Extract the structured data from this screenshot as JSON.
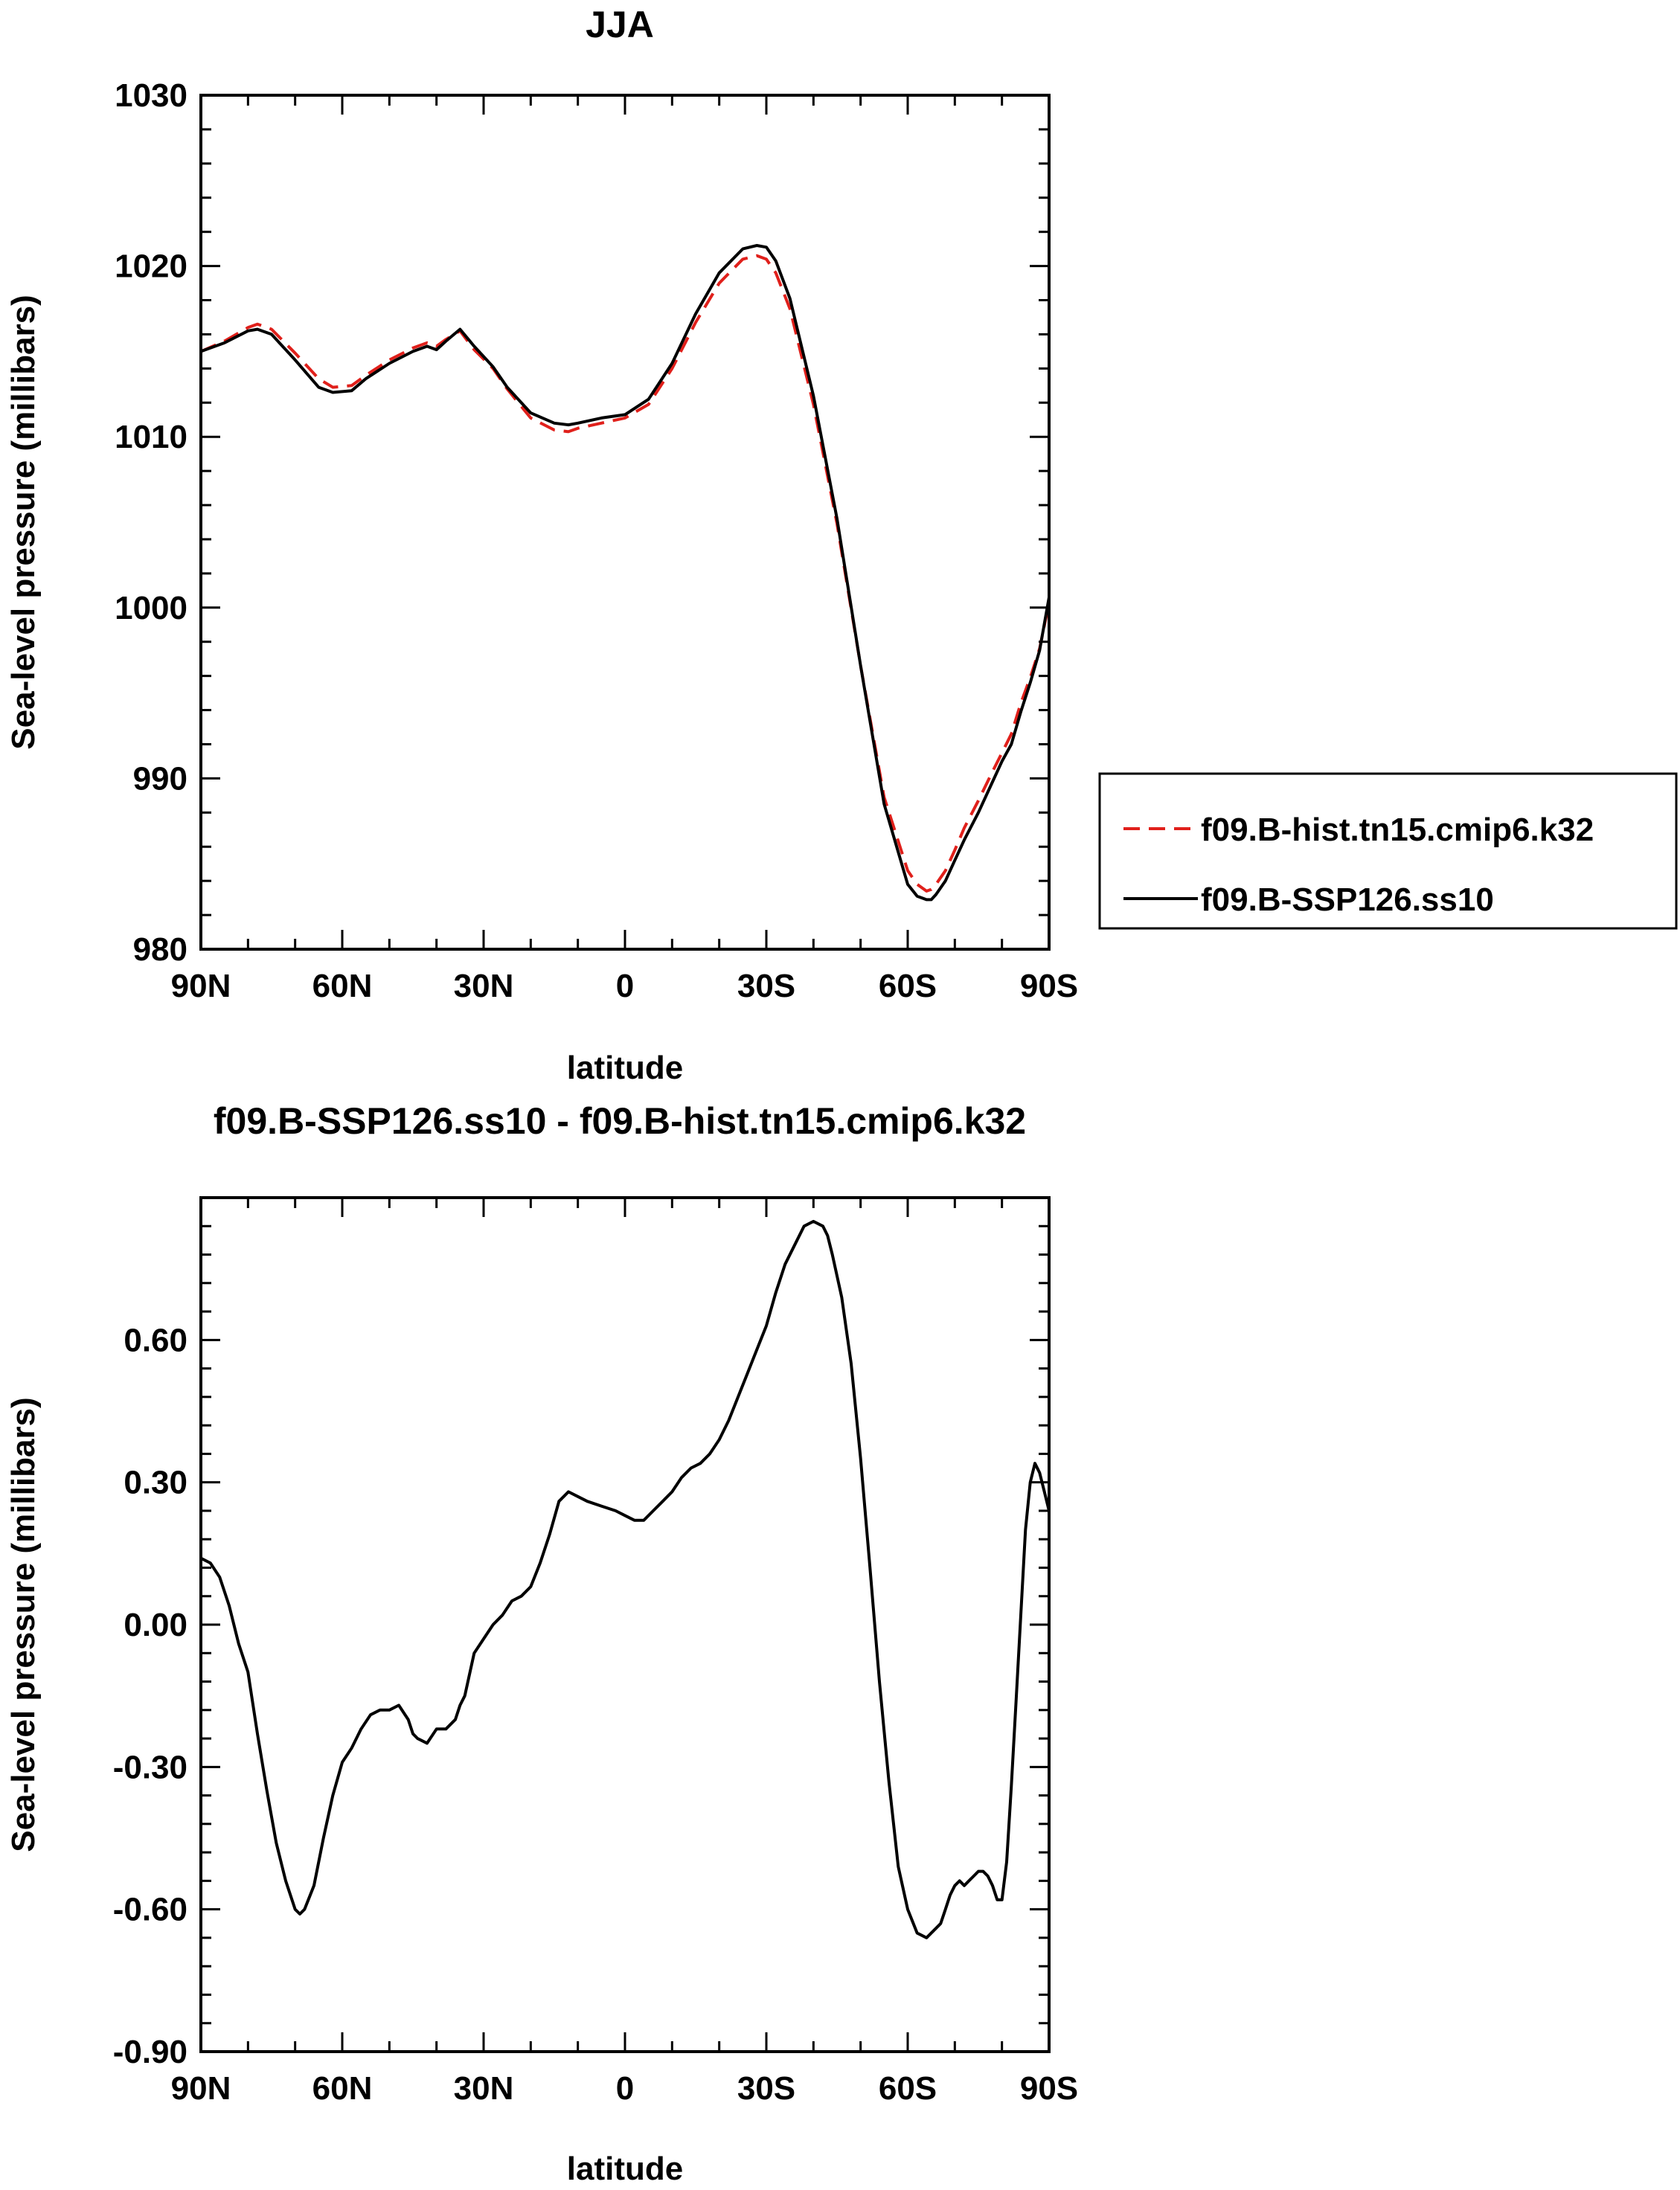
{
  "chart_data": [
    {
      "type": "line",
      "title": "JJA",
      "xlabel": "latitude",
      "ylabel": "Sea-level pressure (millibars)",
      "xlim": [
        90,
        -90
      ],
      "ylim": [
        980,
        1030
      ],
      "x_ticks": [
        90,
        60,
        30,
        0,
        -30,
        -60,
        -90
      ],
      "x_tick_labels": [
        "90N",
        "60N",
        "30N",
        "0",
        "30S",
        "60S",
        "90S"
      ],
      "y_ticks": [
        980,
        990,
        1000,
        1010,
        1020,
        1030
      ],
      "y_tick_labels": [
        "980",
        "990",
        "1000",
        "1010",
        "1020",
        "1030"
      ],
      "legend": {
        "placement": "right",
        "entries": [
          "f09.B-hist.tn15.cmip6.k32",
          "f09.B-SSP126.ss10"
        ]
      },
      "series": [
        {
          "name": "f09.B-hist.tn15.cmip6.k32",
          "color": "#e0201b",
          "dash": "dashed",
          "x": [
            90,
            85,
            80,
            78,
            75,
            70,
            65,
            62,
            58,
            55,
            50,
            45,
            42,
            40,
            38,
            35,
            32,
            28,
            25,
            20,
            15,
            12,
            10,
            5,
            0,
            -5,
            -10,
            -15,
            -20,
            -25,
            -28,
            -30,
            -32,
            -35,
            -40,
            -45,
            -50,
            -55,
            -60,
            -62,
            -64,
            -65,
            -66,
            -68,
            -70,
            -72,
            -75,
            -78,
            -80,
            -82,
            -84,
            -86,
            -88,
            -90
          ],
          "y": [
            1015.0,
            1015.6,
            1016.4,
            1016.6,
            1016.3,
            1014.9,
            1013.4,
            1012.9,
            1013.0,
            1013.6,
            1014.5,
            1015.2,
            1015.5,
            1015.3,
            1015.7,
            1016.2,
            1015.1,
            1014.0,
            1012.8,
            1011.1,
            1010.4,
            1010.3,
            1010.5,
            1010.8,
            1011.1,
            1011.9,
            1014.0,
            1016.7,
            1019.0,
            1020.4,
            1020.6,
            1020.4,
            1019.6,
            1017.5,
            1011.9,
            1004.9,
            996.6,
            988.9,
            984.6,
            983.8,
            983.4,
            983.5,
            983.8,
            984.6,
            985.8,
            987.1,
            988.7,
            990.4,
            991.5,
            992.6,
            994.4,
            995.9,
            997.6,
            1000.3
          ]
        },
        {
          "name": "f09.B-SSP126.ss10",
          "color": "#000000",
          "dash": "solid",
          "x": [
            90,
            85,
            80,
            78,
            75,
            70,
            65,
            62,
            58,
            55,
            50,
            45,
            42,
            40,
            38,
            35,
            32,
            28,
            25,
            20,
            15,
            12,
            10,
            5,
            0,
            -5,
            -10,
            -15,
            -20,
            -25,
            -28,
            -30,
            -32,
            -35,
            -40,
            -45,
            -50,
            -55,
            -60,
            -62,
            -64,
            -65,
            -66,
            -68,
            -70,
            -72,
            -75,
            -78,
            -80,
            -82,
            -84,
            -86,
            -88,
            -90
          ],
          "y": [
            1015.0,
            1015.5,
            1016.2,
            1016.3,
            1016.0,
            1014.5,
            1012.9,
            1012.6,
            1012.7,
            1013.4,
            1014.3,
            1015.0,
            1015.3,
            1015.1,
            1015.6,
            1016.3,
            1015.3,
            1014.1,
            1012.9,
            1011.4,
            1010.8,
            1010.7,
            1010.8,
            1011.1,
            1011.3,
            1012.2,
            1014.3,
            1017.2,
            1019.6,
            1021.0,
            1021.2,
            1021.1,
            1020.3,
            1018.1,
            1012.4,
            1005.2,
            996.6,
            988.5,
            983.8,
            983.1,
            982.9,
            982.9,
            983.2,
            984.0,
            985.2,
            986.4,
            988.0,
            989.8,
            991.0,
            992.0,
            993.9,
            995.6,
            997.5,
            1000.6
          ]
        }
      ]
    },
    {
      "type": "line",
      "title": "f09.B-SSP126.ss10 - f09.B-hist.tn15.cmip6.k32",
      "xlabel": "latitude",
      "ylabel": "Sea-level pressure (millibars)",
      "xlim": [
        90,
        -90
      ],
      "ylim": [
        -0.9,
        0.9
      ],
      "x_ticks": [
        90,
        60,
        30,
        0,
        -30,
        -60,
        -90
      ],
      "x_tick_labels": [
        "90N",
        "60N",
        "30N",
        "0",
        "30S",
        "60S",
        "90S"
      ],
      "y_ticks": [
        -0.9,
        -0.6,
        -0.3,
        0.0,
        0.3,
        0.6
      ],
      "y_tick_labels": [
        "-0.90",
        "-0.60",
        "-0.30",
        "0.00",
        "0.30",
        "0.60"
      ],
      "series": [
        {
          "name": "f09.B-SSP126.ss10 - f09.B-hist.tn15.cmip6.k32",
          "color": "#000000",
          "dash": "solid",
          "x": [
            90,
            88,
            86,
            84,
            82,
            80,
            78,
            76,
            74,
            72,
            70,
            69,
            68,
            66,
            64,
            62,
            60,
            58,
            56,
            54,
            52,
            50,
            48,
            46,
            45,
            44,
            42,
            40,
            38,
            36,
            35,
            34,
            32,
            30,
            28,
            26,
            24,
            22,
            20,
            18,
            16,
            14,
            12,
            10,
            8,
            5,
            2,
            0,
            -2,
            -4,
            -6,
            -8,
            -10,
            -12,
            -14,
            -16,
            -18,
            -20,
            -22,
            -24,
            -26,
            -28,
            -30,
            -32,
            -34,
            -36,
            -38,
            -40,
            -42,
            -43,
            -44,
            -46,
            -48,
            -50,
            -52,
            -54,
            -56,
            -58,
            -60,
            -62,
            -64,
            -66,
            -67,
            -68,
            -69,
            -70,
            -71,
            -72,
            -73,
            -74,
            -75,
            -76,
            -77,
            -78,
            -79,
            -80,
            -81,
            -82,
            -83,
            -84,
            -85,
            -86,
            -87,
            -88,
            -89,
            -90
          ],
          "y": [
            0.14,
            0.13,
            0.1,
            0.04,
            -0.04,
            -0.1,
            -0.23,
            -0.35,
            -0.46,
            -0.54,
            -0.6,
            -0.61,
            -0.6,
            -0.55,
            -0.45,
            -0.36,
            -0.29,
            -0.26,
            -0.22,
            -0.19,
            -0.18,
            -0.18,
            -0.17,
            -0.2,
            -0.23,
            -0.24,
            -0.25,
            -0.22,
            -0.22,
            -0.2,
            -0.17,
            -0.15,
            -0.06,
            -0.03,
            0.0,
            0.02,
            0.05,
            0.06,
            0.08,
            0.13,
            0.19,
            0.26,
            0.28,
            0.27,
            0.26,
            0.25,
            0.24,
            0.23,
            0.22,
            0.22,
            0.24,
            0.26,
            0.28,
            0.31,
            0.33,
            0.34,
            0.36,
            0.39,
            0.43,
            0.48,
            0.53,
            0.58,
            0.63,
            0.7,
            0.76,
            0.8,
            0.84,
            0.85,
            0.84,
            0.82,
            0.78,
            0.69,
            0.55,
            0.35,
            0.12,
            -0.12,
            -0.33,
            -0.51,
            -0.6,
            -0.65,
            -0.66,
            -0.64,
            -0.63,
            -0.6,
            -0.57,
            -0.55,
            -0.54,
            -0.55,
            -0.54,
            -0.53,
            -0.52,
            -0.52,
            -0.53,
            -0.55,
            -0.58,
            -0.58,
            -0.5,
            -0.34,
            -0.16,
            0.02,
            0.2,
            0.3,
            0.34,
            0.32,
            0.28,
            0.24
          ]
        }
      ]
    }
  ]
}
